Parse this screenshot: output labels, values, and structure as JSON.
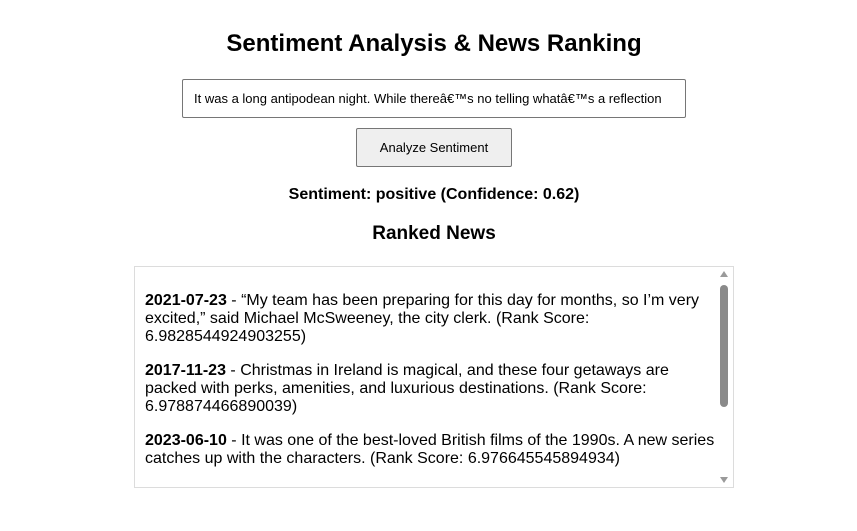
{
  "header": {
    "title": "Sentiment Analysis & News Ranking"
  },
  "input": {
    "value": "It was a long antipodean night. While thereâ€™s no telling whatâ€™s a reflection"
  },
  "analyze_button": {
    "label": "Analyze Sentiment"
  },
  "result": {
    "text": "Sentiment: positive (Confidence: 0.62)"
  },
  "news": {
    "heading": "Ranked News",
    "items": [
      {
        "date": "2021-07-23",
        "text": " - “My team has been preparing for this day for months, so I’m very excited,” said Michael McSweeney, the city clerk. (Rank Score: 6.9828544924903255)"
      },
      {
        "date": "2017-11-23",
        "text": " - Christmas in Ireland is magical, and these four getaways are packed with perks, amenities, and luxurious destinations. (Rank Score: 6.978874466890039)"
      },
      {
        "date": "2023-06-10",
        "text": " - It was one of the best-loved British films of the 1990s. A new series catches up with the characters. (Rank Score: 6.976645545894934)"
      }
    ]
  }
}
